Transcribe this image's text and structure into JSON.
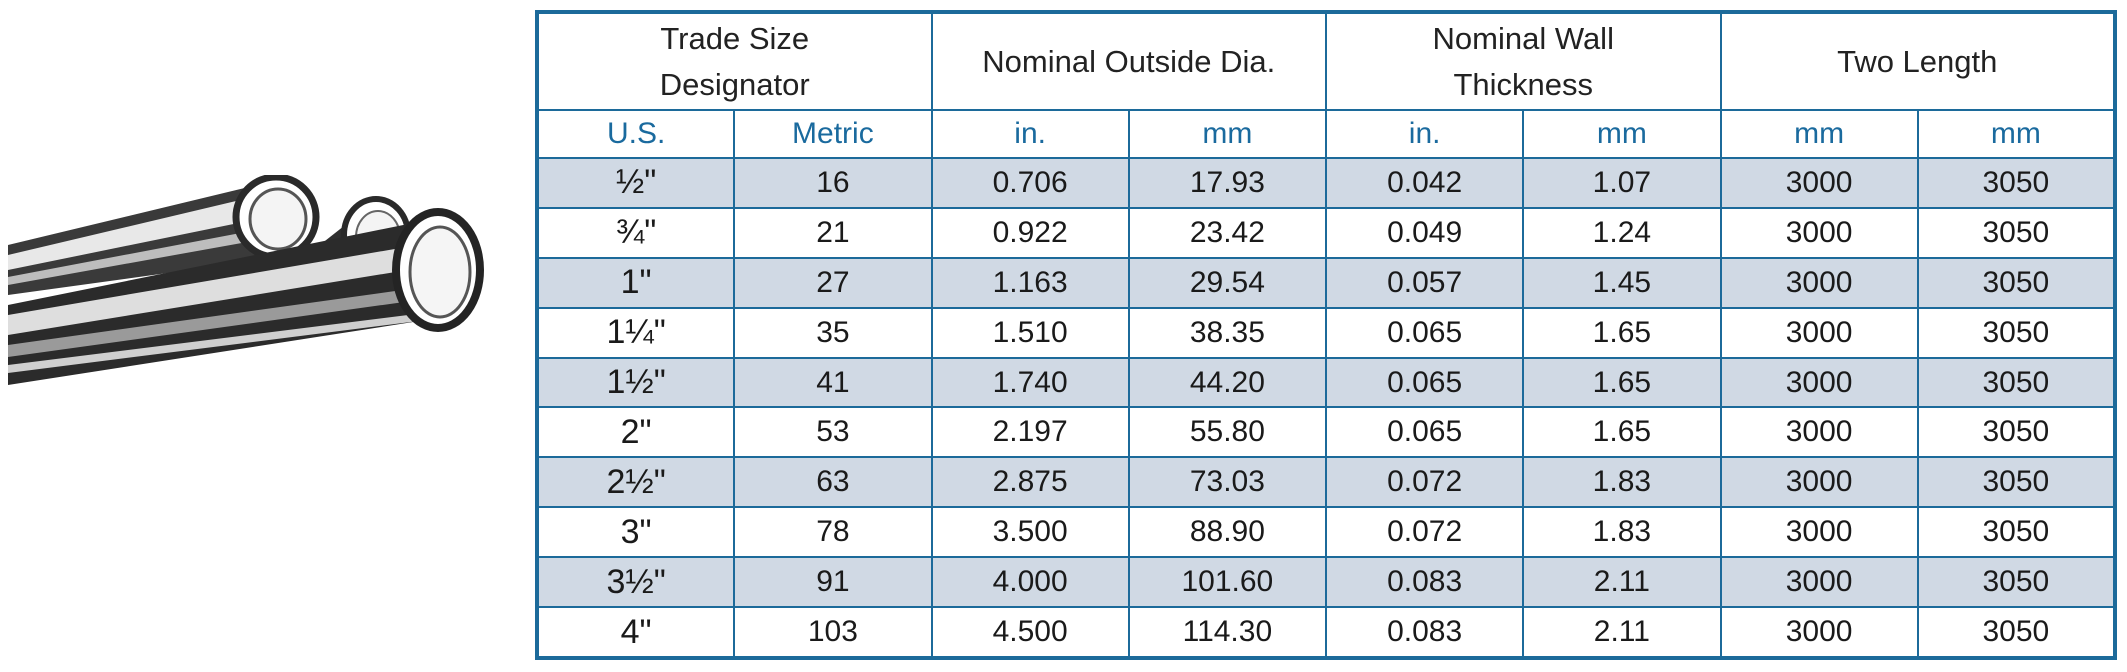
{
  "header": {
    "trade_size": "Trade Size Designator",
    "outside_dia": "Nominal Outside Dia.",
    "wall_thickness": "Nominal Wall Thickness",
    "two_length": "Two Length"
  },
  "units": [
    "U.S.",
    "Metric",
    "in.",
    "mm",
    "in.",
    "mm",
    "mm",
    "mm"
  ],
  "rows": [
    {
      "us": "½\"",
      "metric": "16",
      "od_in": "0.706",
      "od_mm": "17.93",
      "wall_in": "0.042",
      "wall_mm": "1.07",
      "len1": "3000",
      "len2": "3050"
    },
    {
      "us": "¾\"",
      "metric": "21",
      "od_in": "0.922",
      "od_mm": "23.42",
      "wall_in": "0.049",
      "wall_mm": "1.24",
      "len1": "3000",
      "len2": "3050"
    },
    {
      "us": "1\"",
      "metric": "27",
      "od_in": "1.163",
      "od_mm": "29.54",
      "wall_in": "0.057",
      "wall_mm": "1.45",
      "len1": "3000",
      "len2": "3050"
    },
    {
      "us": "1¼\"",
      "metric": "35",
      "od_in": "1.510",
      "od_mm": "38.35",
      "wall_in": "0.065",
      "wall_mm": "1.65",
      "len1": "3000",
      "len2": "3050"
    },
    {
      "us": "1½\"",
      "metric": "41",
      "od_in": "1.740",
      "od_mm": "44.20",
      "wall_in": "0.065",
      "wall_mm": "1.65",
      "len1": "3000",
      "len2": "3050"
    },
    {
      "us": "2\"",
      "metric": "53",
      "od_in": "2.197",
      "od_mm": "55.80",
      "wall_in": "0.065",
      "wall_mm": "1.65",
      "len1": "3000",
      "len2": "3050"
    },
    {
      "us": "2½\"",
      "metric": "63",
      "od_in": "2.875",
      "od_mm": "73.03",
      "wall_in": "0.072",
      "wall_mm": "1.83",
      "len1": "3000",
      "len2": "3050"
    },
    {
      "us": "3\"",
      "metric": "78",
      "od_in": "3.500",
      "od_mm": "88.90",
      "wall_in": "0.072",
      "wall_mm": "1.83",
      "len1": "3000",
      "len2": "3050"
    },
    {
      "us": "3½\"",
      "metric": "91",
      "od_in": "4.000",
      "od_mm": "101.60",
      "wall_in": "0.083",
      "wall_mm": "2.11",
      "len1": "3000",
      "len2": "3050"
    },
    {
      "us": "4\"",
      "metric": "103",
      "od_in": "4.500",
      "od_mm": "114.30",
      "wall_in": "0.083",
      "wall_mm": "2.11",
      "len1": "3000",
      "len2": "3050"
    }
  ],
  "colors": {
    "border": "#1c6a9a",
    "unit_text": "#1a6a9e",
    "shaded_row": "#d0d9e4"
  },
  "illustration": "pipes-illustration"
}
